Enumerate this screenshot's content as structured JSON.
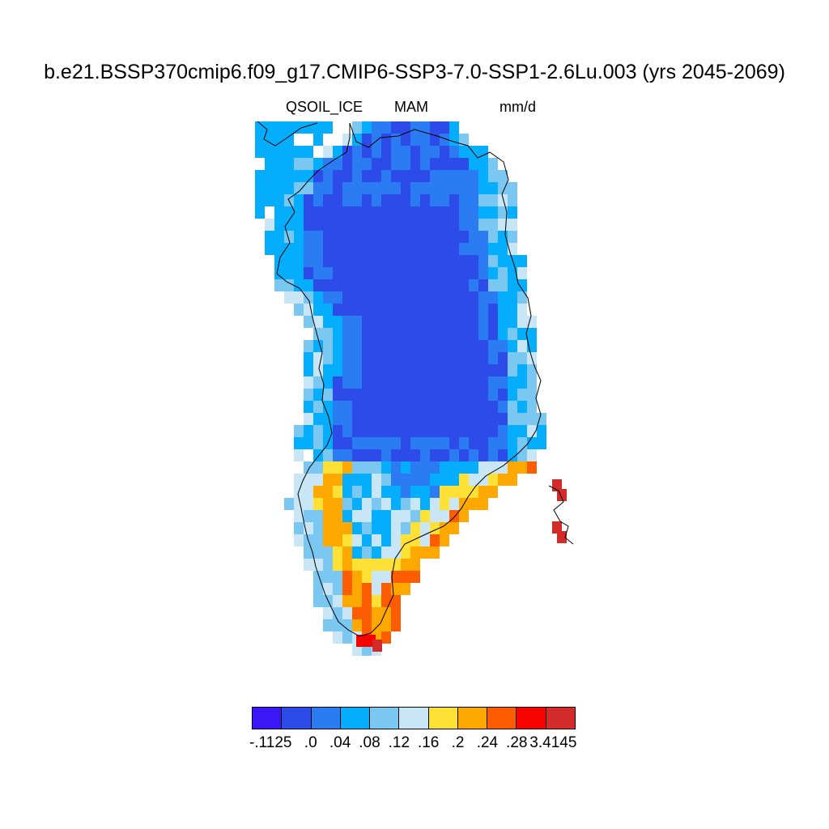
{
  "title": "b.e21.BSSP370cmip6.f09_g17.CMIP6-SSP3-7.0-SSP1-2.6Lu.003 (yrs 2045-2069)",
  "subtitle": {
    "variable": "QSOIL_ICE",
    "season": "MAM",
    "units": "mm/d"
  },
  "map_data": {
    "type": "gridded-field",
    "region": "Greenland",
    "variable": "QSOIL_ICE",
    "season": "MAM",
    "units": "mm/d"
  },
  "colorbar": {
    "colors": [
      "#3b16f7",
      "#2c4be9",
      "#2b7cf2",
      "#05aefc",
      "#7ac8f1",
      "#c9e6f7",
      "#ffe135",
      "#fea800",
      "#fe5c00",
      "#f60300",
      "#d32a2a"
    ],
    "labels": [
      "-.1125",
      ".0",
      ".04",
      ".08",
      ".12",
      ".16",
      ".2",
      ".24",
      ".28",
      "3.4145"
    ]
  }
}
